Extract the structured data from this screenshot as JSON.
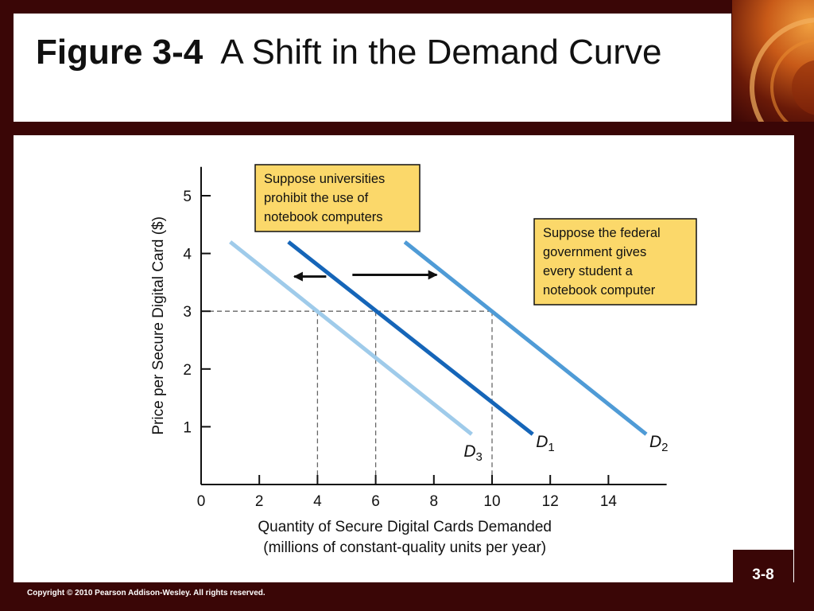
{
  "slide": {
    "figure_label": "Figure 3-4",
    "title": "A Shift in the Demand Curve",
    "slide_number": "3-8",
    "copyright": "Copyright © 2010 Pearson Addison-Wesley. All rights reserved."
  },
  "colors": {
    "background": "#3a0606",
    "callout_fill": "#fbd86a",
    "d1": "#1565b8",
    "d2": "#4f9bd6",
    "d3": "#9fcbea"
  },
  "chart_data": {
    "type": "line",
    "xlabel": "Quantity of Secure Digital Cards Demanded",
    "xlabel2": "(millions of constant-quality units per year)",
    "ylabel": "Price per Secure Digital Card ($)",
    "xlim": [
      0,
      16
    ],
    "ylim": [
      0,
      5.5
    ],
    "x_ticks": [
      0,
      2,
      4,
      6,
      8,
      10,
      12,
      14
    ],
    "y_ticks": [
      1,
      2,
      3,
      4,
      5
    ],
    "grid": false,
    "series": [
      {
        "name": "D1",
        "letter": "D",
        "sub": "1",
        "points": [
          [
            3,
            4.2
          ],
          [
            11.4,
            0.87
          ]
        ]
      },
      {
        "name": "D2",
        "letter": "D",
        "sub": "2",
        "points": [
          [
            7,
            4.2
          ],
          [
            15.3,
            0.87
          ]
        ]
      },
      {
        "name": "D3",
        "letter": "D",
        "sub": "3",
        "points": [
          [
            1,
            4.2
          ],
          [
            9.3,
            0.87
          ]
        ]
      }
    ],
    "reference_lines": {
      "price": 3,
      "quantities": [
        4,
        6,
        10
      ]
    },
    "annotations": [
      {
        "key": "universities",
        "lines": [
          "Suppose universities",
          "prohibit the use of",
          "notebook computers"
        ]
      },
      {
        "key": "federal",
        "lines": [
          "Suppose the federal",
          "government gives",
          "every student a",
          "notebook computer"
        ]
      }
    ]
  }
}
